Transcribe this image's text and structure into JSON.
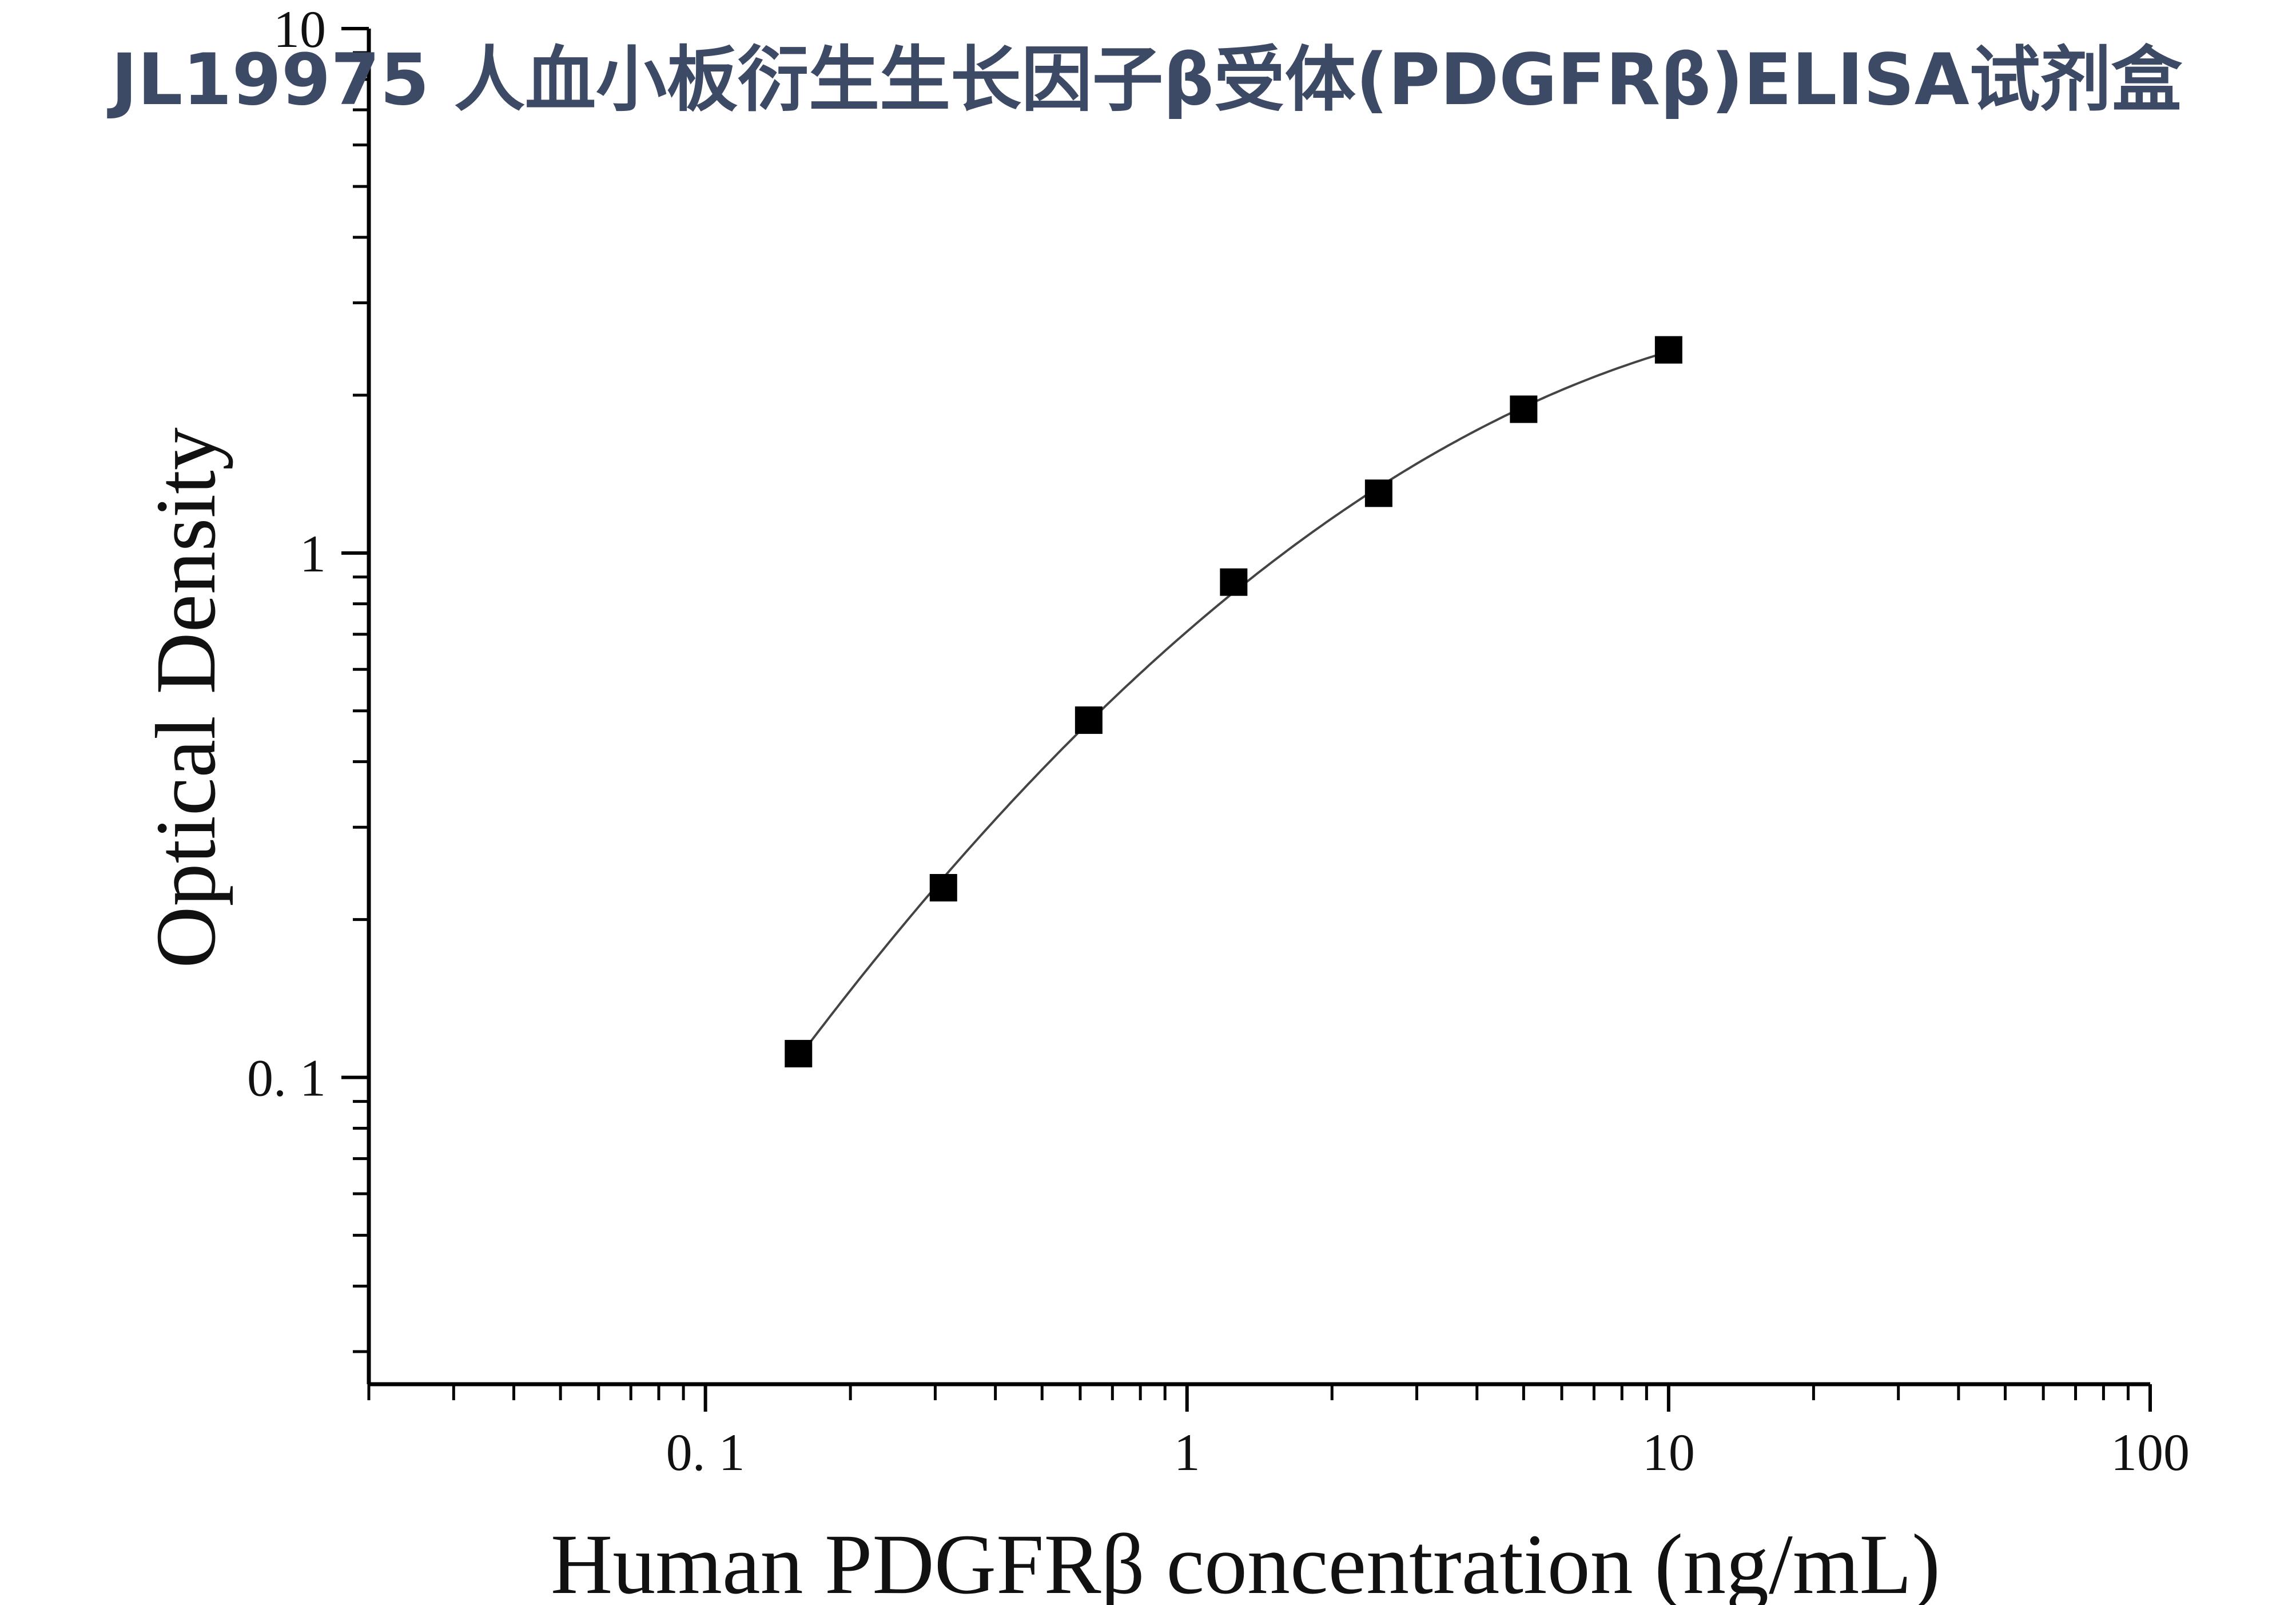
{
  "chart_data": {
    "type": "scatter",
    "title": "JL19975 人血小板衍生生长因子β受体(PDGFRβ)ELISA试剂盒",
    "xlabel": "Human PDGFRβ concentration (ng/mL)",
    "ylabel": "Optical Density",
    "x_scale": "log",
    "y_scale": "log",
    "xlim": [
      0.02,
      100
    ],
    "ylim": [
      0.026,
      10
    ],
    "x_ticks": [
      {
        "value": 0.1,
        "label": "0. 1"
      },
      {
        "value": 1,
        "label": "1"
      },
      {
        "value": 10,
        "label": "10"
      },
      {
        "value": 100,
        "label": "100"
      }
    ],
    "y_ticks": [
      {
        "value": 0.1,
        "label": "0. 1"
      },
      {
        "value": 1,
        "label": "1"
      },
      {
        "value": 10,
        "label": "10"
      }
    ],
    "grid": false,
    "legend": "none",
    "series": [
      {
        "marker": "square",
        "color": "#000000",
        "fit_line": true,
        "x": [
          0.156,
          0.312,
          0.625,
          1.25,
          2.5,
          5,
          10
        ],
        "y": [
          0.111,
          0.23,
          0.48,
          0.88,
          1.3,
          1.88,
          2.44
        ]
      }
    ]
  }
}
